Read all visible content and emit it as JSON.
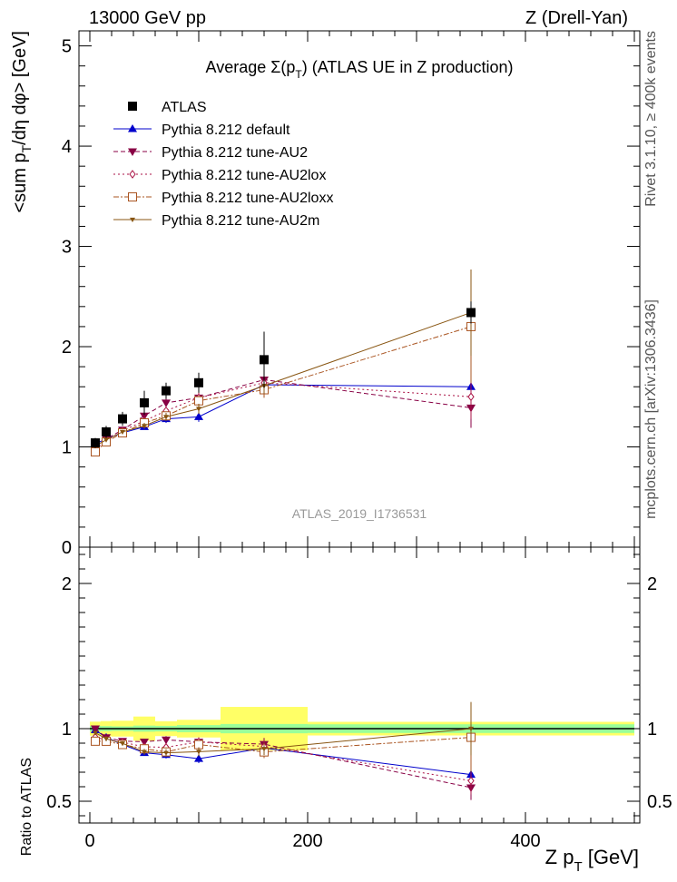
{
  "header": {
    "left": "13000 GeV pp",
    "right": "Z (Drell-Yan)"
  },
  "side_labels": {
    "rivet": "Rivet 3.1.10, ≥ 400k events",
    "mcplots": "mcplots.cern.ch [arXiv:1306.3436]"
  },
  "watermark": "ATLAS_2019_I1736531",
  "chart_data": {
    "type": "line",
    "title": "Average Σ(p_T) (ATLAS UE in Z production)",
    "title_parts": {
      "pre": "Average ",
      "sym": "Σ(p",
      "sub": "T",
      "post": ") (ATLAS UE in Z production)"
    },
    "ylabel": "<sum p_T/dη dφ> [GeV]",
    "ylabel_parts": {
      "a": "<sum p",
      "sub": "T",
      "b": "/dη dφ> [GeV]"
    },
    "ratio_ylabel": "Ratio to ATLAS",
    "xlabel": "Z p_T [GeV]",
    "xlabel_parts": {
      "a": "Z p",
      "sub": "T",
      "b": " [GeV]"
    },
    "xlim": [
      -10,
      505
    ],
    "ylim": [
      0,
      5.15
    ],
    "ratio_ylim": [
      0.35,
      2.25
    ],
    "x_ticks": [
      0,
      200,
      400
    ],
    "x_tick_labels": [
      "0",
      "200",
      "400"
    ],
    "y_ticks": [
      0,
      1,
      2,
      3,
      4,
      5
    ],
    "y_tick_labels": [
      "0",
      "1",
      "2",
      "3",
      "4",
      "5"
    ],
    "ratio_ticks": [
      0.5,
      1,
      2
    ],
    "ratio_tick_labels": [
      "0.5",
      "1",
      "2"
    ],
    "bin_edges": [
      0,
      10,
      20,
      40,
      60,
      80,
      120,
      200,
      500
    ],
    "x": [
      5,
      15,
      30,
      50,
      70,
      100,
      160,
      350
    ],
    "data": {
      "name": "ATLAS",
      "values": [
        1.04,
        1.15,
        1.28,
        1.44,
        1.56,
        1.64,
        1.87,
        2.34
      ],
      "err_stat": [
        0.02,
        0.02,
        0.02,
        0.03,
        0.03,
        0.04,
        0.06,
        0.07
      ],
      "err_tot": [
        0.05,
        0.06,
        0.07,
        0.12,
        0.08,
        0.1,
        0.28,
        0.11
      ]
    },
    "series": [
      {
        "name": "Pythia 8.212 default",
        "color": "#0000cc",
        "dash": "",
        "marker": "triangle-up",
        "values": [
          1.03,
          1.08,
          1.14,
          1.2,
          1.28,
          1.3,
          1.62,
          1.6
        ],
        "errors": [
          0.01,
          0.02,
          0.02,
          0.02,
          0.04,
          0.05,
          0.08,
          0.2
        ]
      },
      {
        "name": "Pythia 8.212 tune-AU2",
        "color": "#880044",
        "dash": "5,3",
        "marker": "triangle-down",
        "values": [
          1.04,
          1.08,
          1.17,
          1.31,
          1.44,
          1.49,
          1.67,
          1.39
        ],
        "errors": [
          0.01,
          0.02,
          0.02,
          0.03,
          0.04,
          0.05,
          0.08,
          0.2
        ]
      },
      {
        "name": "Pythia 8.212 tune-AU2lox",
        "color": "#aa1144",
        "dash": "2,3",
        "marker": "diamond-open",
        "values": [
          0.98,
          1.06,
          1.16,
          1.26,
          1.36,
          1.49,
          1.64,
          1.5
        ],
        "errors": [
          0.01,
          0.02,
          0.02,
          0.03,
          0.04,
          0.05,
          0.08,
          0.22
        ]
      },
      {
        "name": "Pythia 8.212 tune-AU2loxx",
        "color": "#aa5522",
        "dash": "6,2,2,2",
        "marker": "square-open",
        "values": [
          0.95,
          1.05,
          1.14,
          1.24,
          1.31,
          1.46,
          1.57,
          2.2
        ],
        "errors": [
          0.01,
          0.02,
          0.02,
          0.03,
          0.04,
          0.05,
          0.08,
          0.56
        ]
      },
      {
        "name": "Pythia 8.212 tune-AU2m",
        "color": "#885511",
        "dash": "",
        "marker": "triangle-down-small",
        "values": [
          1.01,
          1.07,
          1.15,
          1.21,
          1.3,
          1.38,
          1.61,
          2.34
        ],
        "errors": [
          0.01,
          0.02,
          0.02,
          0.03,
          0.04,
          0.05,
          0.08,
          0.43
        ]
      }
    ],
    "legend_position": "top-left",
    "colors": {
      "stat_band": "#99ff99",
      "total_band": "#ffff66",
      "data_marker": "#000000"
    }
  }
}
